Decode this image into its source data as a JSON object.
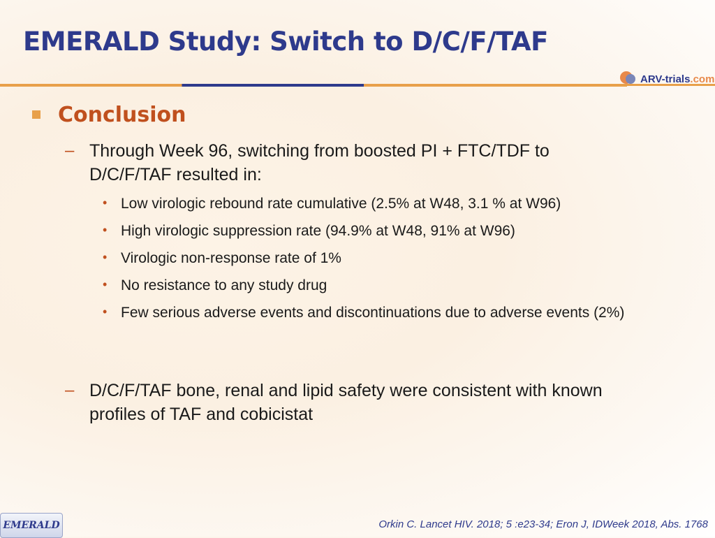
{
  "slide": {
    "title": "EMERALD Study: Switch to D/C/F/TAF",
    "logo": {
      "brand": "ARV-trials",
      "suffix": ".com"
    },
    "heading": "Conclusion",
    "point1": "Through Week 96, switching from boosted PI + FTC/TDF to D/C/F/TAF resulted in:",
    "subpoints": [
      "Low virologic rebound rate cumulative (2.5% at W48, 3.1 % at W96)",
      "High virologic suppression rate (94.9% at W48, 91% at W96)",
      "Virologic non-response rate of 1%",
      "No resistance to any study drug",
      "Few serious adverse events and discontinuations due to adverse events (2%)"
    ],
    "point2": "D/C/F/TAF bone, renal and lipid safety were consistent with known profiles of TAF and cobicistat",
    "citation": "Orkin C. Lancet HIV. 2018; 5 :e23-34; Eron J, IDWeek 2018, Abs. 1768",
    "badge": "EMERALD"
  },
  "colors": {
    "title": "#2e3a8c",
    "accent": "#e8a04a",
    "heading": "#c0501e"
  }
}
